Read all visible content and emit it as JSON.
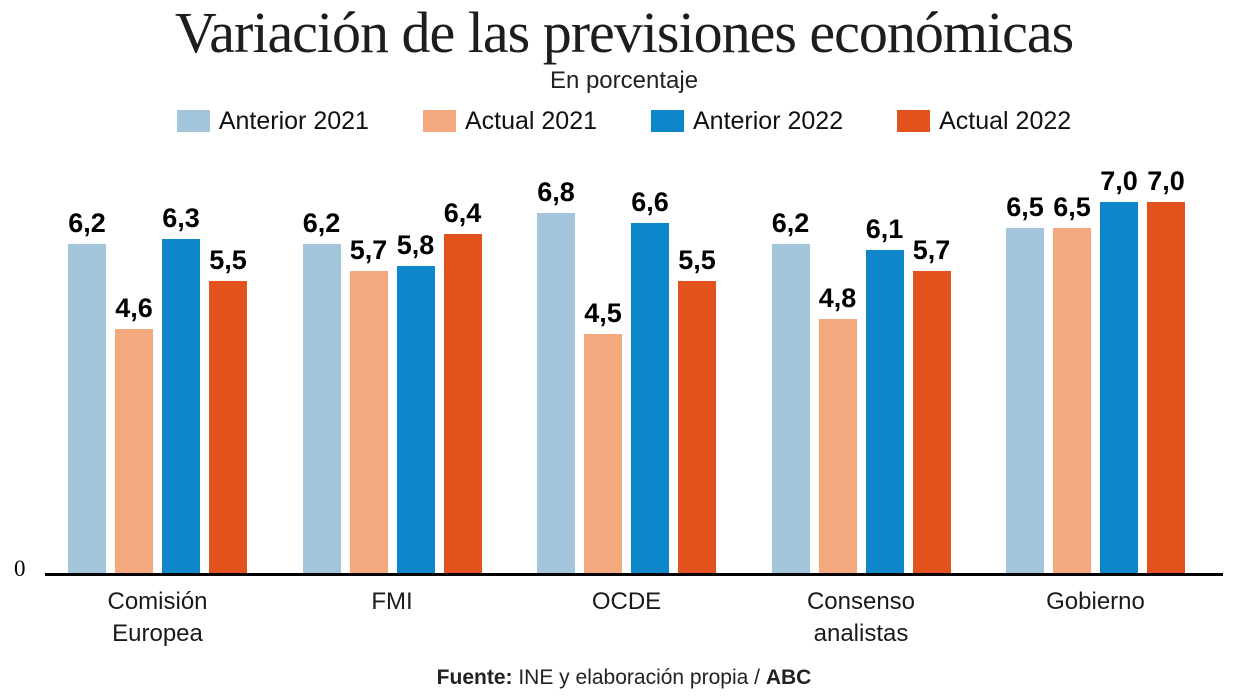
{
  "header": {
    "title": "Variación de las previsiones económicas",
    "subtitle": "En porcentaje"
  },
  "chart_data": {
    "type": "bar",
    "title": "Variación de las previsiones económicas",
    "subtitle": "En porcentaje",
    "categories": [
      "Comisión Europea",
      "FMI",
      "OCDE",
      "Consenso analistas",
      "Gobierno"
    ],
    "series": [
      {
        "name": "Anterior 2021",
        "color": "#a2c5db",
        "values": [
          6.2,
          6.2,
          6.8,
          6.2,
          6.5
        ]
      },
      {
        "name": "Actual 2021",
        "color": "#f4a87d",
        "values": [
          4.6,
          5.7,
          4.5,
          4.8,
          6.5
        ]
      },
      {
        "name": "Anterior 2022",
        "color": "#0d86ca",
        "values": [
          6.3,
          5.8,
          6.6,
          6.1,
          7.0
        ]
      },
      {
        "name": "Actual 2022",
        "color": "#e4521d",
        "values": [
          5.5,
          6.4,
          5.5,
          5.7,
          7.0
        ]
      }
    ],
    "decimal_separator": ",",
    "value_labels_shown": true,
    "y_axis": {
      "origin_label": "0",
      "ylim": [
        0,
        7.4
      ],
      "axis_color": "#000000"
    },
    "grid": false,
    "legend_position": "top"
  },
  "footer": {
    "source_prefix": "Fuente:",
    "source_text": " INE y elaboración propia / ",
    "source_brand": "ABC"
  }
}
